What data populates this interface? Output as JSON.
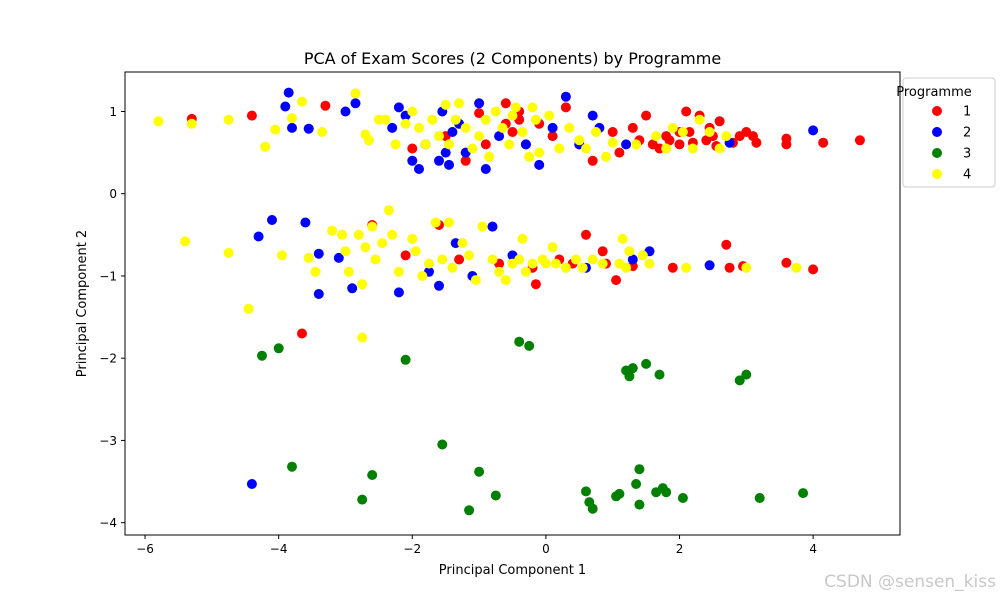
{
  "chart_data": {
    "type": "scatter",
    "title": "PCA of Exam Scores (2 Components) by Programme",
    "xlabel": "Principal Component 1",
    "ylabel": "Principal Component 2",
    "xlim": [
      -6.3,
      5.3
    ],
    "ylim": [
      -4.15,
      1.48
    ],
    "xticks": [
      -6,
      -4,
      -2,
      0,
      2,
      4
    ],
    "yticks": [
      -4,
      -3,
      -2,
      -1,
      0,
      1
    ],
    "grid": false,
    "legend": {
      "title": "Programme",
      "placement": "upper-right-outside"
    },
    "series": [
      {
        "name": "1",
        "color": "#ff0000",
        "points": [
          [
            -5.3,
            0.91
          ],
          [
            -4.4,
            0.95
          ],
          [
            -3.3,
            1.07
          ],
          [
            -2.6,
            -0.38
          ],
          [
            -2.1,
            -0.75
          ],
          [
            -2.0,
            0.55
          ],
          [
            -1.6,
            -0.38
          ],
          [
            -1.5,
            0.7
          ],
          [
            -1.3,
            -0.8
          ],
          [
            -1.2,
            0.4
          ],
          [
            -1.0,
            0.98
          ],
          [
            -0.9,
            0.6
          ],
          [
            -0.8,
            -0.4
          ],
          [
            -0.7,
            -0.85
          ],
          [
            -0.6,
            0.85
          ],
          [
            -0.5,
            0.75
          ],
          [
            -0.4,
            1.0
          ],
          [
            -0.3,
            0.6
          ],
          [
            -0.2,
            -0.9
          ],
          [
            -0.15,
            -1.1
          ],
          [
            -0.1,
            0.85
          ],
          [
            0.1,
            0.7
          ],
          [
            0.2,
            -0.8
          ],
          [
            0.3,
            1.05
          ],
          [
            0.5,
            0.6
          ],
          [
            0.6,
            -0.5
          ],
          [
            0.7,
            0.4
          ],
          [
            0.85,
            -0.7
          ],
          [
            1.0,
            0.75
          ],
          [
            1.05,
            -1.05
          ],
          [
            1.1,
            0.5
          ],
          [
            1.3,
            0.8
          ],
          [
            1.4,
            0.65
          ],
          [
            1.5,
            0.95
          ],
          [
            1.6,
            0.6
          ],
          [
            1.8,
            0.7
          ],
          [
            1.9,
            -0.9
          ],
          [
            2.0,
            0.6
          ],
          [
            2.1,
            1.0
          ],
          [
            2.15,
            0.75
          ],
          [
            2.3,
            0.95
          ],
          [
            2.4,
            0.65
          ],
          [
            2.5,
            0.7
          ],
          [
            2.6,
            0.88
          ],
          [
            2.7,
            -0.62
          ],
          [
            2.75,
            -0.9
          ],
          [
            2.8,
            0.62
          ],
          [
            2.9,
            0.7
          ],
          [
            2.95,
            -0.88
          ],
          [
            3.0,
            0.75
          ],
          [
            3.1,
            0.7
          ],
          [
            3.15,
            0.62
          ],
          [
            3.6,
            0.6
          ],
          [
            3.6,
            -0.84
          ],
          [
            3.6,
            0.67
          ],
          [
            4.0,
            -0.92
          ],
          [
            4.15,
            0.62
          ],
          [
            4.7,
            0.65
          ],
          [
            -3.65,
            -1.7
          ],
          [
            2.2,
            0.62
          ],
          [
            2.45,
            0.8
          ],
          [
            1.7,
            0.55
          ],
          [
            1.85,
            0.65
          ],
          [
            2.55,
            0.58
          ],
          [
            2.0,
            0.75
          ],
          [
            1.3,
            -0.88
          ],
          [
            0.9,
            -0.85
          ],
          [
            0.4,
            -0.85
          ],
          [
            -0.4,
            0.9
          ],
          [
            -0.6,
            1.1
          ]
        ]
      },
      {
        "name": "2",
        "color": "#0000ff",
        "points": [
          [
            -4.4,
            -3.53
          ],
          [
            -4.3,
            -0.52
          ],
          [
            -4.1,
            -0.32
          ],
          [
            -3.9,
            1.06
          ],
          [
            -3.85,
            1.23
          ],
          [
            -3.8,
            0.8
          ],
          [
            -3.6,
            -0.35
          ],
          [
            -3.55,
            0.79
          ],
          [
            -3.4,
            -1.22
          ],
          [
            -3.4,
            -0.73
          ],
          [
            -3.0,
            1.0
          ],
          [
            -2.9,
            -1.15
          ],
          [
            -2.85,
            1.1
          ],
          [
            -2.3,
            0.8
          ],
          [
            -2.2,
            -1.2
          ],
          [
            -2.2,
            1.05
          ],
          [
            -2.1,
            0.95
          ],
          [
            -2.0,
            0.4
          ],
          [
            -1.9,
            0.3
          ],
          [
            -1.8,
            0.6
          ],
          [
            -1.75,
            -0.95
          ],
          [
            -1.6,
            0.4
          ],
          [
            -1.55,
            1.0
          ],
          [
            -1.5,
            0.5
          ],
          [
            -1.45,
            0.35
          ],
          [
            -1.4,
            0.75
          ],
          [
            -1.35,
            -0.6
          ],
          [
            -1.3,
            0.85
          ],
          [
            -1.2,
            0.5
          ],
          [
            -1.1,
            -1.0
          ],
          [
            -1.0,
            1.1
          ],
          [
            -0.9,
            0.3
          ],
          [
            -0.8,
            -0.4
          ],
          [
            -0.7,
            0.7
          ],
          [
            -0.5,
            -0.75
          ],
          [
            -0.3,
            0.6
          ],
          [
            -0.1,
            0.35
          ],
          [
            0.1,
            0.8
          ],
          [
            0.3,
            1.18
          ],
          [
            0.5,
            0.6
          ],
          [
            0.6,
            -0.9
          ],
          [
            0.7,
            0.95
          ],
          [
            0.8,
            0.8
          ],
          [
            1.2,
            0.6
          ],
          [
            1.3,
            -0.8
          ],
          [
            1.55,
            -0.7
          ],
          [
            2.45,
            -0.87
          ],
          [
            2.75,
            0.62
          ],
          [
            4.0,
            0.77
          ],
          [
            -1.6,
            -1.12
          ],
          [
            -3.1,
            -0.78
          ]
        ]
      },
      {
        "name": "3",
        "color": "#008000",
        "points": [
          [
            -4.25,
            -1.97
          ],
          [
            -4.0,
            -1.88
          ],
          [
            -3.8,
            -3.32
          ],
          [
            -2.75,
            -3.72
          ],
          [
            -2.6,
            -3.42
          ],
          [
            -2.1,
            -2.02
          ],
          [
            -1.55,
            -3.05
          ],
          [
            -1.15,
            -3.85
          ],
          [
            -1.0,
            -3.38
          ],
          [
            -0.75,
            -3.67
          ],
          [
            -0.4,
            -1.8
          ],
          [
            -0.25,
            -1.85
          ],
          [
            0.6,
            -3.62
          ],
          [
            0.65,
            -3.75
          ],
          [
            0.7,
            -3.83
          ],
          [
            1.05,
            -3.68
          ],
          [
            1.1,
            -3.65
          ],
          [
            1.2,
            -2.15
          ],
          [
            1.25,
            -2.22
          ],
          [
            1.3,
            -2.12
          ],
          [
            1.35,
            -3.53
          ],
          [
            1.4,
            -3.78
          ],
          [
            1.4,
            -3.35
          ],
          [
            1.5,
            -2.07
          ],
          [
            1.65,
            -3.63
          ],
          [
            1.7,
            -2.2
          ],
          [
            1.75,
            -3.58
          ],
          [
            1.8,
            -3.63
          ],
          [
            2.05,
            -3.7
          ],
          [
            2.9,
            -2.27
          ],
          [
            3.0,
            -2.2
          ],
          [
            3.2,
            -3.7
          ],
          [
            3.85,
            -3.64
          ]
        ]
      },
      {
        "name": "4",
        "color": "#ffff00",
        "points": [
          [
            -5.8,
            0.88
          ],
          [
            -5.4,
            -0.58
          ],
          [
            -5.3,
            0.85
          ],
          [
            -4.75,
            -0.72
          ],
          [
            -4.75,
            0.9
          ],
          [
            -4.2,
            0.57
          ],
          [
            -4.05,
            0.78
          ],
          [
            -3.95,
            -0.75
          ],
          [
            -3.8,
            0.92
          ],
          [
            -3.65,
            1.12
          ],
          [
            -3.55,
            -0.78
          ],
          [
            -3.45,
            -0.95
          ],
          [
            -3.35,
            0.75
          ],
          [
            -3.2,
            -0.45
          ],
          [
            -3.05,
            -0.5
          ],
          [
            -2.95,
            -0.95
          ],
          [
            -2.85,
            1.22
          ],
          [
            -2.8,
            -0.5
          ],
          [
            -2.75,
            -1.1
          ],
          [
            -2.7,
            -0.65
          ],
          [
            -2.7,
            0.72
          ],
          [
            -2.65,
            0.65
          ],
          [
            -2.6,
            -0.4
          ],
          [
            -2.55,
            -0.8
          ],
          [
            -2.5,
            0.9
          ],
          [
            -2.45,
            -0.6
          ],
          [
            -2.4,
            0.9
          ],
          [
            -2.3,
            -0.5
          ],
          [
            -2.25,
            0.6
          ],
          [
            -2.2,
            -0.95
          ],
          [
            -2.1,
            0.85
          ],
          [
            -2.0,
            1.0
          ],
          [
            -1.95,
            -0.7
          ],
          [
            -1.9,
            0.8
          ],
          [
            -1.85,
            -1.0
          ],
          [
            -1.8,
            0.6
          ],
          [
            -1.75,
            -0.85
          ],
          [
            -1.7,
            0.9
          ],
          [
            -1.65,
            -0.35
          ],
          [
            -1.6,
            0.7
          ],
          [
            -1.55,
            -0.8
          ],
          [
            -1.5,
            1.08
          ],
          [
            -1.45,
            0.6
          ],
          [
            -1.4,
            -0.9
          ],
          [
            -1.35,
            0.9
          ],
          [
            -1.3,
            1.1
          ],
          [
            -1.25,
            -0.6
          ],
          [
            -1.2,
            0.8
          ],
          [
            -1.15,
            -0.75
          ],
          [
            -1.1,
            0.55
          ],
          [
            -1.05,
            -1.05
          ],
          [
            -1.0,
            0.7
          ],
          [
            -0.95,
            -0.4
          ],
          [
            -0.9,
            0.9
          ],
          [
            -0.85,
            0.45
          ],
          [
            -0.8,
            -0.8
          ],
          [
            -0.75,
            1.0
          ],
          [
            -0.7,
            -0.95
          ],
          [
            -0.65,
            0.8
          ],
          [
            -0.6,
            -1.05
          ],
          [
            -0.55,
            0.6
          ],
          [
            -0.5,
            -0.85
          ],
          [
            -0.45,
            1.05
          ],
          [
            -0.4,
            -0.8
          ],
          [
            -0.35,
            0.75
          ],
          [
            -0.3,
            -0.95
          ],
          [
            -0.25,
            0.45
          ],
          [
            -0.2,
            -0.85
          ],
          [
            -0.15,
            0.9
          ],
          [
            -0.1,
            0.5
          ],
          [
            0.0,
            -0.85
          ],
          [
            0.05,
            0.95
          ],
          [
            0.1,
            -0.65
          ],
          [
            0.15,
            -0.85
          ],
          [
            0.2,
            0.55
          ],
          [
            0.3,
            -0.9
          ],
          [
            0.35,
            0.8
          ],
          [
            0.45,
            -0.8
          ],
          [
            0.5,
            0.65
          ],
          [
            0.55,
            -0.9
          ],
          [
            0.6,
            0.55
          ],
          [
            0.7,
            -0.8
          ],
          [
            0.75,
            0.75
          ],
          [
            0.85,
            -0.85
          ],
          [
            0.9,
            0.45
          ],
          [
            1.0,
            0.62
          ],
          [
            1.1,
            -0.85
          ],
          [
            1.15,
            -0.55
          ],
          [
            1.25,
            -0.7
          ],
          [
            1.35,
            0.6
          ],
          [
            1.45,
            -0.75
          ],
          [
            1.55,
            -0.85
          ],
          [
            1.65,
            0.7
          ],
          [
            1.8,
            0.55
          ],
          [
            1.9,
            0.8
          ],
          [
            2.05,
            0.75
          ],
          [
            2.1,
            -0.9
          ],
          [
            2.2,
            0.55
          ],
          [
            2.3,
            0.9
          ],
          [
            2.45,
            0.75
          ],
          [
            2.6,
            0.55
          ],
          [
            2.7,
            0.7
          ],
          [
            3.0,
            -0.9
          ],
          [
            3.75,
            -0.9
          ],
          [
            -2.75,
            -1.75
          ],
          [
            -4.45,
            -1.4
          ],
          [
            -1.45,
            -0.35
          ],
          [
            -0.35,
            -0.55
          ],
          [
            -0.05,
            -0.8
          ],
          [
            -0.5,
            0.95
          ],
          [
            -0.2,
            1.05
          ],
          [
            -2.0,
            -0.55
          ],
          [
            1.2,
            -0.9
          ],
          [
            -3.0,
            -0.7
          ],
          [
            -2.35,
            -0.2
          ]
        ]
      }
    ]
  },
  "watermark": "CSDN @sensen_kiss"
}
